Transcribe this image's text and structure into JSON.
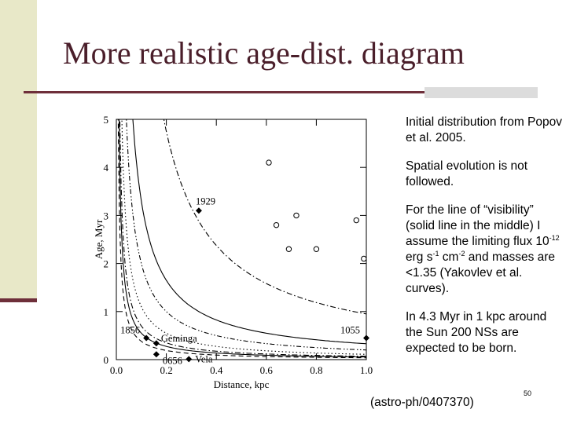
{
  "slide": {
    "title": "More realistic age-dist. diagram",
    "page_number": "50",
    "reference": "(astro-ph/0407370)",
    "colors": {
      "accent": "#6e2f3a",
      "side_panel": "#e8e8c8",
      "title": "#4a1e2a"
    }
  },
  "notes": {
    "p1": "Initial distribution from Popov et al. 2005.",
    "p2": "Spatial evolution is not followed.",
    "p3": {
      "a": "For the line of “visibility” (solid line in the middle) I assume the limiting flux 10",
      "e1": "-12",
      "b": " erg s",
      "e2": "-1",
      "c": " cm",
      "e3": "-2",
      "d": " and masses are <1.35 (Yakovlev et al. curves)."
    },
    "p4": "In 4.3 Myr in 1 kpc around the Sun 200 NSs are expected to be born."
  },
  "chart_data": {
    "type": "scatter",
    "xlabel": "Distance, kpc",
    "ylabel": "Age, Myr",
    "xlim": [
      0.0,
      1.0
    ],
    "ylim": [
      0,
      5
    ],
    "xticks": [
      "0.0",
      "0.2",
      "0.4",
      "0.6",
      "0.8",
      "1.0"
    ],
    "yticks": [
      "0",
      "1",
      "2",
      "3",
      "4",
      "5"
    ],
    "named_sources": [
      {
        "name": "1929",
        "x": 0.33,
        "y": 3.1
      },
      {
        "name": "1856",
        "x": 0.12,
        "y": 0.45
      },
      {
        "name": "Geminga",
        "x": 0.16,
        "y": 0.34
      },
      {
        "name": "0656",
        "x": 0.16,
        "y": 0.11
      },
      {
        "name": "Vela",
        "x": 0.29,
        "y": 0.01
      },
      {
        "name": "1055",
        "x": 1.0,
        "y": 0.45
      }
    ],
    "open_points": [
      {
        "x": 0.61,
        "y": 4.1
      },
      {
        "x": 0.64,
        "y": 2.8
      },
      {
        "x": 0.69,
        "y": 2.3
      },
      {
        "x": 0.72,
        "y": 3.0
      },
      {
        "x": 0.8,
        "y": 2.3
      },
      {
        "x": 0.96,
        "y": 2.9
      },
      {
        "x": 0.99,
        "y": 2.1
      }
    ],
    "curves": [
      {
        "style": "solid",
        "k": 0.33
      },
      {
        "style": "solid",
        "k": 0.055
      },
      {
        "style": "dashed",
        "k": 0.038
      },
      {
        "style": "dashdot",
        "k": 0.07
      },
      {
        "style": "dotted",
        "k": 0.11
      },
      {
        "style": "dashdot",
        "k": 0.95
      },
      {
        "style": "dotdot",
        "k": 0.2
      }
    ]
  }
}
